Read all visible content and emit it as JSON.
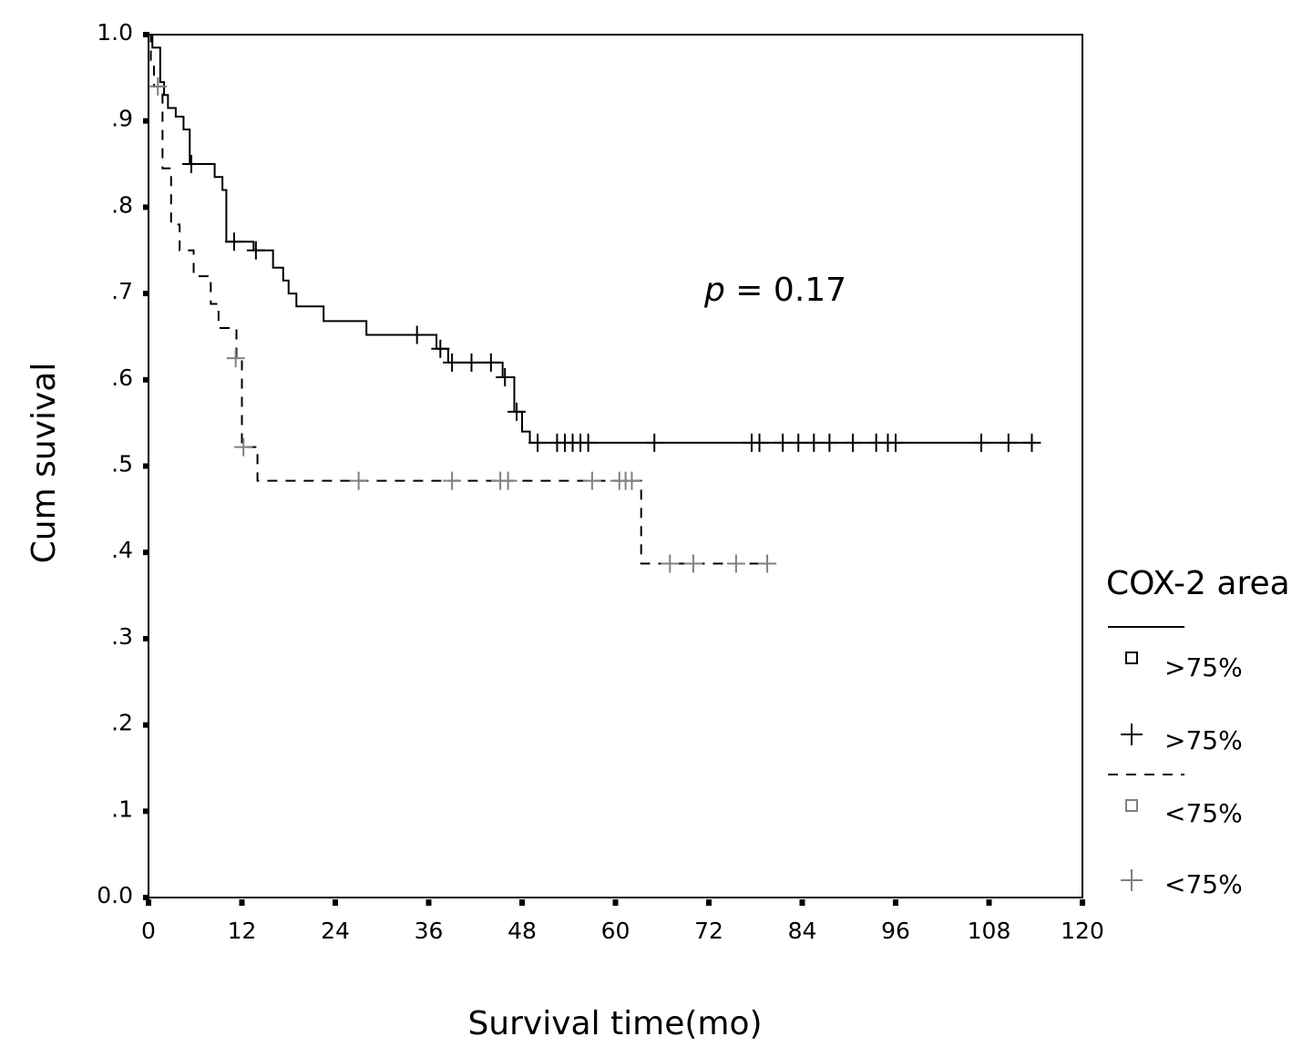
{
  "chart_data": {
    "type": "line",
    "subtype": "kaplan-meier",
    "xlabel": "Survival time(mo)",
    "ylabel": "Cum suvival",
    "xlim": [
      0,
      120
    ],
    "ylim": [
      0,
      1.0
    ],
    "xticks": [
      0,
      12,
      24,
      36,
      48,
      60,
      72,
      84,
      96,
      108,
      120
    ],
    "xtick_labels": [
      "0",
      "12",
      "24",
      "36",
      "48",
      "60",
      "72",
      "84",
      "96",
      "108",
      "120"
    ],
    "yticks": [
      0,
      0.1,
      0.2,
      0.3,
      0.4,
      0.5,
      0.6,
      0.7,
      0.8,
      0.9,
      1.0
    ],
    "ytick_labels": [
      "0.0",
      ".1",
      ".2",
      ".3",
      ".4",
      ".5",
      ".6",
      ".7",
      ".8",
      ".9",
      "1.0"
    ],
    "annotation": {
      "italic": "p",
      "text": " = 0.17"
    },
    "legend": {
      "title": "COX-2 area",
      "position": "right",
      "entries": [
        {
          "label": ">75%",
          "marker": "square",
          "color": "#000000"
        },
        {
          "label": ">75%",
          "marker": "plus",
          "color": "#000000"
        },
        {
          "label": "<75%",
          "marker": "square",
          "color": "#808080"
        },
        {
          "label": "<75%",
          "marker": "plus",
          "color": "#808080"
        }
      ]
    },
    "series": [
      {
        "name": ">75%",
        "line_style": "solid",
        "line_color": "#000000",
        "censor_color": "#000000",
        "steps": [
          [
            0,
            1.0
          ],
          [
            0.5,
            0.985
          ],
          [
            1.5,
            0.945
          ],
          [
            2,
            0.93
          ],
          [
            2.5,
            0.915
          ],
          [
            3.5,
            0.905
          ],
          [
            4.5,
            0.89
          ],
          [
            5.3,
            0.85
          ],
          [
            8.5,
            0.835
          ],
          [
            9.5,
            0.82
          ],
          [
            10,
            0.76
          ],
          [
            13.5,
            0.75
          ],
          [
            16,
            0.73
          ],
          [
            17.3,
            0.715
          ],
          [
            18,
            0.7
          ],
          [
            19,
            0.685
          ],
          [
            22.5,
            0.668
          ],
          [
            28,
            0.652
          ],
          [
            37,
            0.636
          ],
          [
            38.5,
            0.62
          ],
          [
            45.5,
            0.603
          ],
          [
            47,
            0.563
          ],
          [
            48,
            0.54
          ],
          [
            49,
            0.527
          ]
        ],
        "end_x": 114,
        "censored": [
          [
            5.5,
            0.85
          ],
          [
            11,
            0.76
          ],
          [
            13.8,
            0.75
          ],
          [
            34.5,
            0.652
          ],
          [
            37.5,
            0.636
          ],
          [
            39,
            0.62
          ],
          [
            41.5,
            0.62
          ],
          [
            44,
            0.62
          ],
          [
            45.8,
            0.603
          ],
          [
            47.3,
            0.563
          ],
          [
            50,
            0.527
          ],
          [
            52.5,
            0.527
          ],
          [
            53.5,
            0.527
          ],
          [
            54.5,
            0.527
          ],
          [
            55.5,
            0.527
          ],
          [
            56.5,
            0.527
          ],
          [
            65,
            0.527
          ],
          [
            77.5,
            0.527
          ],
          [
            78.5,
            0.527
          ],
          [
            81.5,
            0.527
          ],
          [
            83.5,
            0.527
          ],
          [
            85.5,
            0.527
          ],
          [
            87.5,
            0.527
          ],
          [
            90.5,
            0.527
          ],
          [
            93.5,
            0.527
          ],
          [
            95,
            0.527
          ],
          [
            96,
            0.527
          ],
          [
            107,
            0.527
          ],
          [
            110.5,
            0.527
          ],
          [
            113.5,
            0.527
          ]
        ]
      },
      {
        "name": "<75%",
        "line_style": "dashed",
        "line_color": "#000000",
        "censor_color": "#808080",
        "steps": [
          [
            0,
            1.0
          ],
          [
            0.3,
            0.97
          ],
          [
            0.7,
            0.94
          ],
          [
            1.8,
            0.845
          ],
          [
            2.9,
            0.78
          ],
          [
            4,
            0.75
          ],
          [
            5.8,
            0.72
          ],
          [
            8,
            0.688
          ],
          [
            9,
            0.66
          ],
          [
            11.3,
            0.625
          ],
          [
            12,
            0.522
          ],
          [
            14,
            0.483
          ],
          [
            63.3,
            0.387
          ]
        ],
        "end_x": 80,
        "censored": [
          [
            1.2,
            0.94
          ],
          [
            11.2,
            0.625
          ],
          [
            12.2,
            0.522
          ],
          [
            27,
            0.483
          ],
          [
            39,
            0.483
          ],
          [
            45.2,
            0.483
          ],
          [
            46.2,
            0.483
          ],
          [
            57,
            0.483
          ],
          [
            60.5,
            0.483
          ],
          [
            61.3,
            0.483
          ],
          [
            62.1,
            0.483
          ],
          [
            67,
            0.387
          ],
          [
            70,
            0.387
          ],
          [
            75.5,
            0.387
          ],
          [
            79.5,
            0.387
          ]
        ]
      }
    ]
  }
}
